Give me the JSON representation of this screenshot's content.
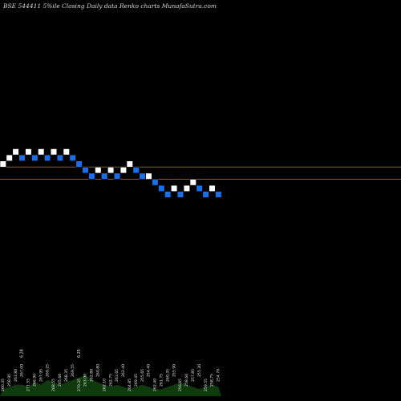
{
  "chart_data": {
    "type": "renko",
    "title": "BSE 544411 5%ile  Closing Daily data  Renko  charts MunafaSutra.com",
    "brick_size": 1,
    "colors": {
      "up": "#ffffff",
      "down": "#1a6fe8",
      "level_line": "#8a5a1e",
      "volume": "#0e3a0e"
    },
    "level_lines": [
      25.5,
      23.5
    ],
    "bricks": [
      {
        "dir": "up",
        "value": 26
      },
      {
        "dir": "up",
        "value": 27
      },
      {
        "dir": "up",
        "value": 28
      },
      {
        "dir": "down",
        "value": 27
      },
      {
        "dir": "up",
        "value": 28
      },
      {
        "dir": "down",
        "value": 27
      },
      {
        "dir": "up",
        "value": 28
      },
      {
        "dir": "down",
        "value": 27
      },
      {
        "dir": "up",
        "value": 28
      },
      {
        "dir": "down",
        "value": 27
      },
      {
        "dir": "up",
        "value": 28
      },
      {
        "dir": "down",
        "value": 27
      },
      {
        "dir": "down",
        "value": 26
      },
      {
        "dir": "down",
        "value": 25
      },
      {
        "dir": "down",
        "value": 24
      },
      {
        "dir": "up",
        "value": 25
      },
      {
        "dir": "down",
        "value": 24
      },
      {
        "dir": "up",
        "value": 25
      },
      {
        "dir": "down",
        "value": 24
      },
      {
        "dir": "up",
        "value": 25
      },
      {
        "dir": "up",
        "value": 26
      },
      {
        "dir": "down",
        "value": 25
      },
      {
        "dir": "down",
        "value": 24
      },
      {
        "dir": "up",
        "value": 24
      },
      {
        "dir": "down",
        "value": 23
      },
      {
        "dir": "down",
        "value": 22
      },
      {
        "dir": "down",
        "value": 21
      },
      {
        "dir": "up",
        "value": 22
      },
      {
        "dir": "down",
        "value": 21
      },
      {
        "dir": "up",
        "value": 22
      },
      {
        "dir": "up",
        "value": 23
      },
      {
        "dir": "down",
        "value": 22
      },
      {
        "dir": "down",
        "value": 21
      },
      {
        "dir": "up",
        "value": 22
      },
      {
        "dir": "down",
        "value": 21
      }
    ],
    "price_labels": [
      "260.35",
      "258.95",
      "263.80",
      "267.00",
      "271.55",
      "266.90",
      "267.95",
      "269.25",
      "268.55",
      "265.60",
      "268.35",
      "269.55",
      "270.35",
      "263.00",
      "262.80",
      "260.80",
      "262.10",
      "262.75",
      "263.65",
      "262.40",
      "264.85",
      "269.45",
      "255.65",
      "254.40",
      "262.40",
      "261.75",
      "260.35",
      "255.90",
      "256.65",
      "258.60",
      "257.85",
      "255.30",
      "259.55",
      "258.75",
      "254.70"
    ],
    "peak_labels": [
      {
        "index": 3,
        "label": "6.28"
      },
      {
        "index": 12,
        "label": "6.25"
      }
    ],
    "volume": [
      3,
      4,
      5,
      5,
      4,
      6,
      5,
      7,
      6,
      5,
      6,
      7,
      8,
      9,
      7,
      6,
      5,
      4,
      5,
      4,
      3,
      4,
      5,
      4,
      3,
      3,
      4,
      5,
      6,
      5,
      4,
      3,
      4,
      5,
      4
    ]
  }
}
